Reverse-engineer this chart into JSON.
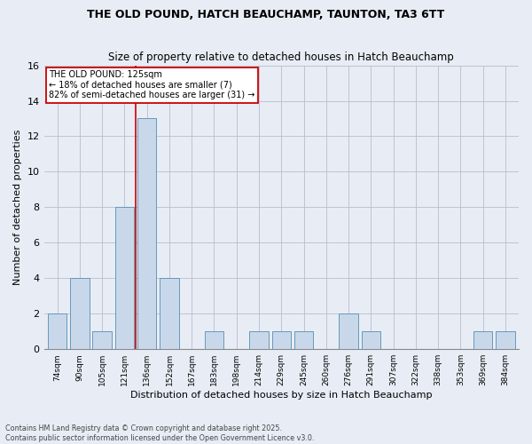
{
  "title": "THE OLD POUND, HATCH BEAUCHAMP, TAUNTON, TA3 6TT",
  "subtitle": "Size of property relative to detached houses in Hatch Beauchamp",
  "xlabel": "Distribution of detached houses by size in Hatch Beauchamp",
  "ylabel": "Number of detached properties",
  "categories": [
    "74sqm",
    "90sqm",
    "105sqm",
    "121sqm",
    "136sqm",
    "152sqm",
    "167sqm",
    "183sqm",
    "198sqm",
    "214sqm",
    "229sqm",
    "245sqm",
    "260sqm",
    "276sqm",
    "291sqm",
    "307sqm",
    "322sqm",
    "338sqm",
    "353sqm",
    "369sqm",
    "384sqm"
  ],
  "values": [
    2,
    4,
    1,
    8,
    13,
    4,
    0,
    1,
    0,
    1,
    1,
    1,
    0,
    2,
    1,
    0,
    0,
    0,
    0,
    1,
    1
  ],
  "bar_color": "#c8d8ea",
  "bar_edge_color": "#6699bb",
  "grid_color": "#bbbbcc",
  "background_color": "#e8edf5",
  "vline_x_index": 3.5,
  "vline_color": "#cc0000",
  "annotation_text": "THE OLD POUND: 125sqm\n← 18% of detached houses are smaller (7)\n82% of semi-detached houses are larger (31) →",
  "annotation_box_color": "#cc0000",
  "footer_text": "Contains HM Land Registry data © Crown copyright and database right 2025.\nContains public sector information licensed under the Open Government Licence v3.0.",
  "ylim": [
    0,
    16
  ],
  "yticks": [
    0,
    2,
    4,
    6,
    8,
    10,
    12,
    14,
    16
  ]
}
